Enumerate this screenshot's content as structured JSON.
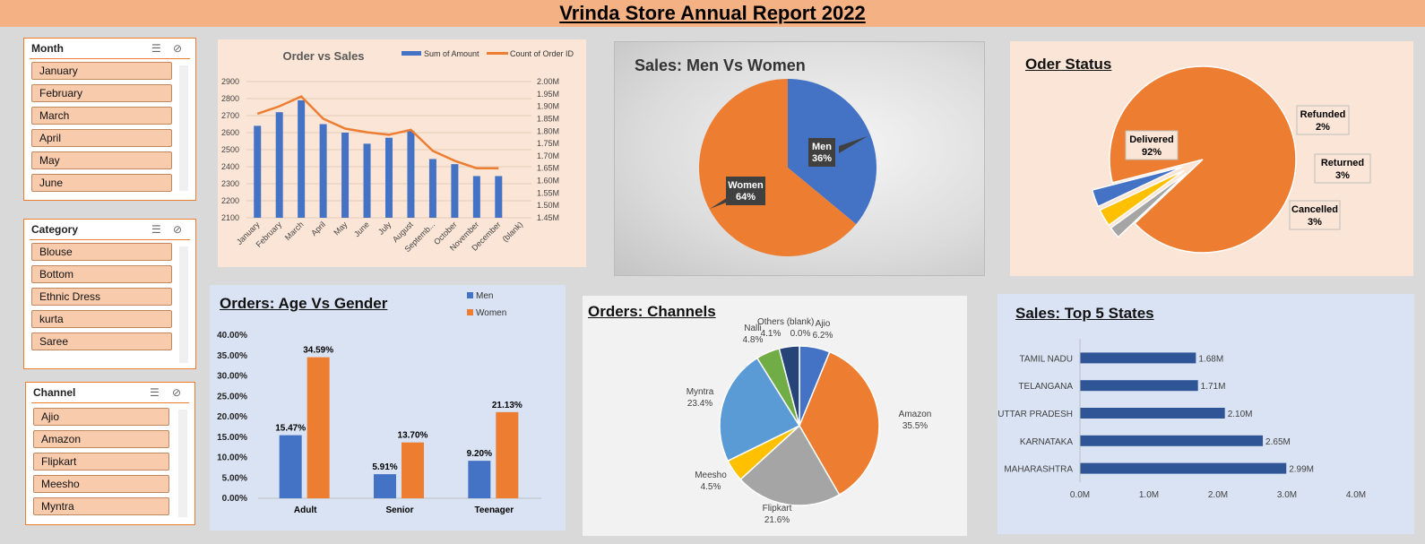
{
  "title": "Vrinda Store Annual Report 2022",
  "slicers": {
    "month": {
      "title": "Month",
      "items": [
        "January",
        "February",
        "March",
        "April",
        "May",
        "June"
      ]
    },
    "category": {
      "title": "Category",
      "items": [
        "Blouse",
        "Bottom",
        "Ethnic Dress",
        "kurta",
        "Saree"
      ]
    },
    "channel": {
      "title": "Channel",
      "items": [
        "Ajio",
        "Amazon",
        "Flipkart",
        "Meesho",
        "Myntra"
      ]
    }
  },
  "panels": {
    "men_women_title": "Sales: Men Vs Women",
    "status_title": "Oder Status",
    "age_title": "Orders: Age Vs Gender",
    "channels_title": "Orders: Channels",
    "states_title": "Sales: Top 5 States"
  },
  "colors": {
    "blue": "#4472c4",
    "orange": "#ed7d31",
    "gray": "#a5a5a5",
    "yellow": "#ffc000",
    "lightblue": "#5b9bd5",
    "green": "#70ad47",
    "navy": "#264478"
  },
  "chart_data": [
    {
      "id": "order_vs_sales",
      "type": "bar+line",
      "title": "Order vs Sales",
      "categories": [
        "January",
        "February",
        "March",
        "April",
        "May",
        "June",
        "July",
        "August",
        "Septemb...",
        "October",
        "November",
        "December",
        "(blank)"
      ],
      "series": [
        {
          "name": "Sum of Amount",
          "type": "bar",
          "axis": "left",
          "values": [
            2640,
            2720,
            2790,
            2650,
            2600,
            2535,
            2570,
            2610,
            2445,
            2415,
            2345,
            2345,
            null
          ]
        },
        {
          "name": "Count of Order ID",
          "type": "line",
          "axis": "right",
          "values": [
            1.87,
            1.9,
            1.94,
            1.85,
            1.81,
            1.795,
            1.785,
            1.805,
            1.72,
            1.68,
            1.65,
            1.65,
            null
          ]
        }
      ],
      "yleft": {
        "min": 2100,
        "max": 2900,
        "ticks": [
          "2100",
          "2200",
          "2300",
          "2400",
          "2500",
          "2600",
          "2700",
          "2800",
          "2900"
        ]
      },
      "yright": {
        "min": 1.45,
        "max": 2.0,
        "ticks": [
          "1.45M",
          "1.50M",
          "1.55M",
          "1.60M",
          "1.65M",
          "1.70M",
          "1.75M",
          "1.80M",
          "1.85M",
          "1.90M",
          "1.95M",
          "2.00M"
        ]
      }
    },
    {
      "id": "men_women",
      "type": "pie",
      "slices": [
        {
          "label": "Men",
          "pct_text": "36%",
          "value": 36
        },
        {
          "label": "Women",
          "pct_text": "64%",
          "value": 64
        }
      ]
    },
    {
      "id": "order_status",
      "type": "pie",
      "slices": [
        {
          "label": "Delivered",
          "pct_text": "92%",
          "value": 92
        },
        {
          "label": "Refunded",
          "pct_text": "2%",
          "value": 2
        },
        {
          "label": "Returned",
          "pct_text": "3%",
          "value": 3
        },
        {
          "label": "Cancelled",
          "pct_text": "3%",
          "value": 3
        }
      ]
    },
    {
      "id": "age_gender",
      "type": "bar",
      "categories": [
        "Adult",
        "Senior",
        "Teenager"
      ],
      "series": [
        {
          "name": "Men",
          "values": [
            15.47,
            5.91,
            9.2
          ],
          "labels": [
            "15.47%",
            "5.91%",
            "9.20%"
          ]
        },
        {
          "name": "Women",
          "values": [
            34.59,
            13.7,
            21.13
          ],
          "labels": [
            "34.59%",
            "13.70%",
            "21.13%"
          ]
        }
      ],
      "ylim": [
        0,
        40
      ],
      "ticks": [
        "0.00%",
        "5.00%",
        "10.00%",
        "15.00%",
        "20.00%",
        "25.00%",
        "30.00%",
        "35.00%",
        "40.00%"
      ]
    },
    {
      "id": "channels",
      "type": "pie",
      "slices": [
        {
          "label": "Ajio",
          "pct_text": "6.2%",
          "value": 6.2
        },
        {
          "label": "Amazon",
          "pct_text": "35.5%",
          "value": 35.5
        },
        {
          "label": "Flipkart",
          "pct_text": "21.6%",
          "value": 21.6
        },
        {
          "label": "Meesho",
          "pct_text": "4.5%",
          "value": 4.5
        },
        {
          "label": "Myntra",
          "pct_text": "23.4%",
          "value": 23.4
        },
        {
          "label": "Nalli",
          "pct_text": "4.8%",
          "value": 4.8
        },
        {
          "label": "Others",
          "pct_text": "4.1%",
          "value": 4.1
        },
        {
          "label": "(blank)",
          "pct_text": "0.0%",
          "value": 0
        }
      ]
    },
    {
      "id": "top_states",
      "type": "bar",
      "orientation": "horizontal",
      "categories": [
        "TAMIL NADU",
        "TELANGANA",
        "UTTAR PRADESH",
        "KARNATAKA",
        "MAHARASHTRA"
      ],
      "values": [
        1.68,
        1.71,
        2.1,
        2.65,
        2.99
      ],
      "labels": [
        "1.68M",
        "1.71M",
        "2.10M",
        "2.65M",
        "2.99M"
      ],
      "xlim": [
        0,
        4
      ],
      "ticks": [
        "0.0M",
        "1.0M",
        "2.0M",
        "3.0M",
        "4.0M"
      ]
    }
  ]
}
